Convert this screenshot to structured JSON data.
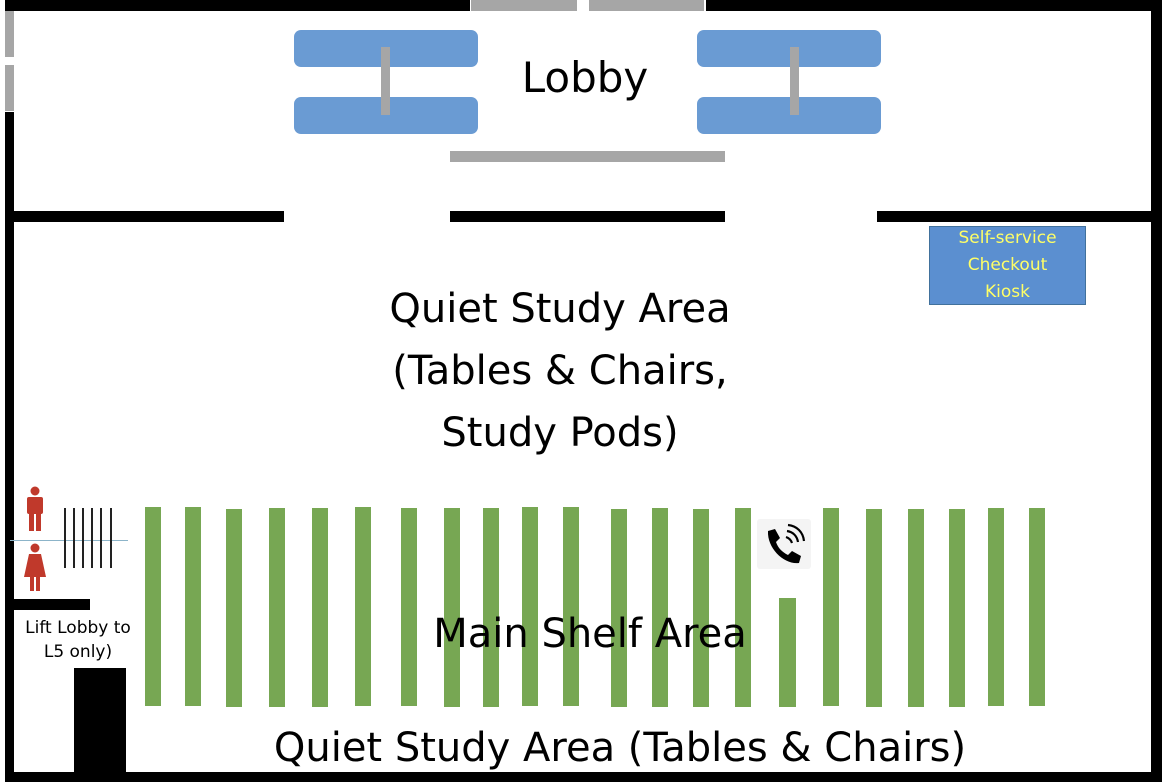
{
  "labels": {
    "lobby": "Lobby",
    "quiet_study_top": "Quiet Study Area\n(Tables & Chairs,\nStudy Pods)",
    "main_shelf": "Main Shelf Area",
    "quiet_study_bottom": "Quiet Study Area (Tables & Chairs)",
    "lift_lobby": "Lift Lobby to\nL5 only)",
    "kiosk": "Self-service\nCheckout\nKiosk"
  },
  "icons": {
    "phone": "phone-icon",
    "male": "male-person-icon",
    "female": "female-person-icon"
  },
  "colors": {
    "sofa": "#6a9bd3",
    "shelf": "#77a753",
    "kiosk": "#5b8fd0",
    "kiosk_text": "#ffff66",
    "person": "#c0392b",
    "wall": "#000000",
    "door": "#a6a6a6"
  }
}
